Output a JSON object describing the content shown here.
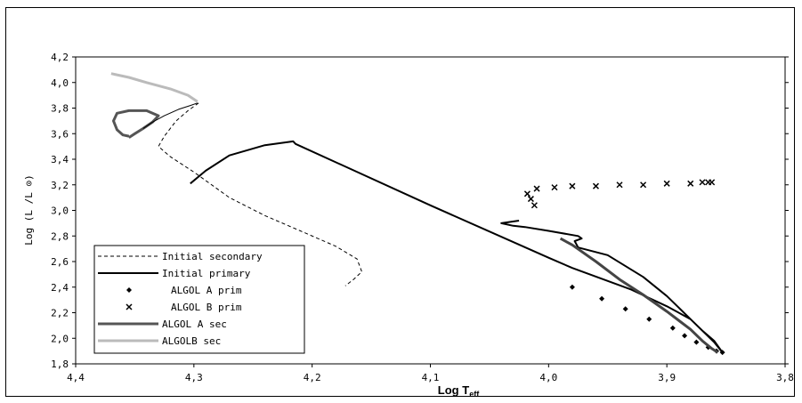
{
  "chart_data": {
    "type": "line",
    "title": "",
    "xlabel": "Log T",
    "xlabel_sub": "eff",
    "ylabel": "Log (L /L ⊙)",
    "xlim": [
      4.4,
      3.8
    ],
    "ylim": [
      1.8,
      4.2
    ],
    "x_ticks": [
      {
        "value": 4.4,
        "label": "4,4"
      },
      {
        "value": 4.3,
        "label": "4,3"
      },
      {
        "value": 4.2,
        "label": "4,2"
      },
      {
        "value": 4.1,
        "label": "4,1"
      },
      {
        "value": 4.0,
        "label": "4,0"
      },
      {
        "value": 3.9,
        "label": "3,9"
      },
      {
        "value": 3.8,
        "label": "3,8"
      }
    ],
    "y_ticks": [
      {
        "value": 1.8,
        "label": "1,8"
      },
      {
        "value": 2.0,
        "label": "2,0"
      },
      {
        "value": 2.2,
        "label": "2,2"
      },
      {
        "value": 2.4,
        "label": "2,4"
      },
      {
        "value": 2.6,
        "label": "2,6"
      },
      {
        "value": 2.8,
        "label": "2,8"
      },
      {
        "value": 3.0,
        "label": "3,0"
      },
      {
        "value": 3.2,
        "label": "3,2"
      },
      {
        "value": 3.4,
        "label": "3,4"
      },
      {
        "value": 3.6,
        "label": "3,6"
      },
      {
        "value": 3.8,
        "label": "3,8"
      },
      {
        "value": 4.0,
        "label": "4,0"
      },
      {
        "value": 4.2,
        "label": "4,2"
      }
    ],
    "grid": false,
    "legend_position": "bottom-left",
    "series": [
      {
        "name": "Initial secondary",
        "style": "dashed",
        "color": "#000000",
        "x": [
          4.296,
          4.305,
          4.315,
          4.325,
          4.33,
          4.32,
          4.3,
          4.27,
          4.24,
          4.21,
          4.18,
          4.162,
          4.158,
          4.165,
          4.172
        ],
        "y": [
          3.84,
          3.78,
          3.7,
          3.58,
          3.5,
          3.42,
          3.3,
          3.1,
          2.96,
          2.84,
          2.72,
          2.62,
          2.52,
          2.46,
          2.41
        ]
      },
      {
        "name": "Initial primary",
        "style": "solid",
        "color": "#000000",
        "x": [
          4.303,
          4.29,
          4.27,
          4.24,
          4.216,
          4.214,
          4.1,
          4.0,
          3.98,
          3.93,
          3.9,
          3.88,
          3.87,
          3.86,
          3.853,
          3.86,
          3.88,
          3.9,
          3.92,
          3.95,
          3.975,
          3.978,
          3.972,
          3.975,
          4.0,
          4.02,
          4.03,
          4.04,
          4.025
        ],
        "y": [
          3.21,
          3.31,
          3.43,
          3.51,
          3.54,
          3.52,
          3.04,
          2.63,
          2.55,
          2.38,
          2.25,
          2.15,
          2.06,
          1.98,
          1.89,
          1.97,
          2.15,
          2.33,
          2.48,
          2.65,
          2.71,
          2.76,
          2.78,
          2.8,
          2.84,
          2.87,
          2.88,
          2.9,
          2.92
        ]
      },
      {
        "name": "ALGOL A prim",
        "style": "markers-diamond",
        "color": "#000000",
        "x": [
          3.98,
          3.955,
          3.935,
          3.915,
          3.895,
          3.885,
          3.875,
          3.865,
          3.858,
          3.853
        ],
        "y": [
          2.4,
          2.31,
          2.23,
          2.15,
          2.08,
          2.02,
          1.97,
          1.93,
          1.9,
          1.89
        ]
      },
      {
        "name": "ALGOL B prim",
        "style": "markers-x",
        "color": "#000000",
        "x": [
          4.012,
          4.015,
          4.018,
          4.01,
          3.995,
          3.98,
          3.96,
          3.94,
          3.92,
          3.9,
          3.88,
          3.87,
          3.865,
          3.862
        ],
        "y": [
          3.04,
          3.09,
          3.13,
          3.17,
          3.18,
          3.19,
          3.19,
          3.2,
          3.2,
          3.21,
          3.21,
          3.22,
          3.22,
          3.22
        ]
      },
      {
        "name": "ALGOL A sec",
        "style": "solid-thick",
        "color": "#555555",
        "x": [
          4.355,
          4.36,
          4.365,
          4.368,
          4.365,
          4.355,
          4.34,
          4.33,
          4.335,
          4.343,
          4.35,
          4.355
        ],
        "y": [
          3.58,
          3.59,
          3.63,
          3.7,
          3.76,
          3.78,
          3.78,
          3.74,
          3.69,
          3.64,
          3.6,
          3.57
        ]
      },
      {
        "name": "ALGOLB sec",
        "style": "solid-thick",
        "color": "#bbbbbb",
        "x": [
          4.37,
          4.355,
          4.34,
          4.32,
          4.305,
          4.297
        ],
        "y": [
          4.07,
          4.04,
          4.0,
          3.95,
          3.9,
          3.85
        ]
      },
      {
        "name": "",
        "style": "solid-thin",
        "color": "#000000",
        "x": [
          4.343,
          4.335,
          4.325,
          4.313,
          4.303,
          4.297
        ],
        "y": [
          3.64,
          3.69,
          3.74,
          3.79,
          3.82,
          3.84
        ]
      },
      {
        "name": "",
        "style": "solid-thick",
        "color": "#444444",
        "x": [
          3.99,
          3.98,
          3.96,
          3.94,
          3.92,
          3.9,
          3.88,
          3.87,
          3.862,
          3.857
        ],
        "y": [
          2.78,
          2.73,
          2.6,
          2.46,
          2.34,
          2.21,
          2.07,
          1.98,
          1.92,
          1.89
        ]
      }
    ]
  }
}
